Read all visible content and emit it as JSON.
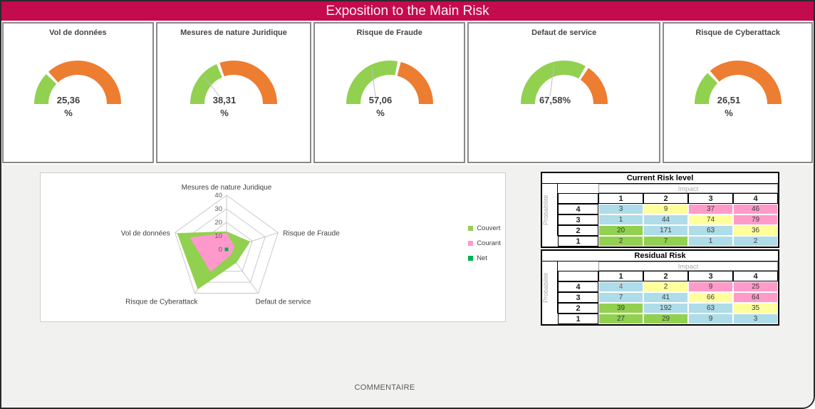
{
  "title_bar": {
    "title": "Exposition to the Main Risk",
    "bg_color": "#C30B4E"
  },
  "footer": {
    "comment_label": "COMMENTAIRE"
  },
  "palette": {
    "blue": "#AEDCE8",
    "yellow": "#FFFF9C",
    "pink": "#FF9BC9",
    "green": "#92D050"
  },
  "chart_data": [
    {
      "type": "gauge",
      "title": "Vol de données",
      "value_pct": 25.36,
      "label_lines": [
        "25,36",
        "%"
      ],
      "leader_line": false,
      "filled_color": "#92D050",
      "remainder_color": "#ED7D31"
    },
    {
      "type": "gauge",
      "title": "Mesures de nature Juridique",
      "value_pct": 38.31,
      "label_lines": [
        "38,31",
        "%"
      ],
      "leader_line": true,
      "filled_color": "#92D050",
      "remainder_color": "#ED7D31"
    },
    {
      "type": "gauge",
      "title": "Risque de Fraude",
      "value_pct": 57.06,
      "label_lines": [
        "57,06",
        "%"
      ],
      "leader_line": true,
      "filled_color": "#92D050",
      "remainder_color": "#ED7D31"
    },
    {
      "type": "gauge",
      "title": "Defaut de service",
      "value_pct": 67.58,
      "label_lines": [
        "67,58%"
      ],
      "leader_line": true,
      "filled_color": "#92D050",
      "remainder_color": "#ED7D31"
    },
    {
      "type": "gauge",
      "title": "Risque de Cyberattack",
      "value_pct": 26.51,
      "label_lines": [
        "26,51",
        "%"
      ],
      "leader_line": false,
      "filled_color": "#92D050",
      "remainder_color": "#ED7D31"
    },
    {
      "type": "radar",
      "categories": [
        "Mesures de nature Juridique",
        "Risque de Fraude",
        "Defaut de service",
        "Risque de Cyberattack",
        "Vol de données"
      ],
      "series": [
        {
          "name": "Couvert",
          "color": "#92D050",
          "values": [
            13,
            18,
            12,
            36,
            38
          ]
        },
        {
          "name": "Courant",
          "color": "#FF99CC",
          "values": [
            12,
            6,
            5,
            20,
            28
          ]
        },
        {
          "name": "Net",
          "color": "#00B050",
          "values": [
            0,
            0,
            0,
            0,
            0
          ]
        }
      ],
      "rmax": 40,
      "rticks": [
        0,
        10,
        20,
        30,
        40
      ],
      "grid": true,
      "legend_position": "right"
    },
    {
      "type": "heatmap",
      "title": "Current Risk level",
      "xlabel": "Impact",
      "ylabel": "Probabilité",
      "columns": [
        "1",
        "2",
        "3",
        "4"
      ],
      "rows": [
        "4",
        "3",
        "2",
        "1"
      ],
      "values": [
        [
          3,
          9,
          37,
          46
        ],
        [
          1,
          44,
          74,
          79
        ],
        [
          20,
          171,
          63,
          36
        ],
        [
          2,
          7,
          1,
          2
        ]
      ],
      "cell_colors": [
        [
          "blue",
          "yellow",
          "pink",
          "pink"
        ],
        [
          "blue",
          "blue",
          "yellow",
          "pink"
        ],
        [
          "green",
          "blue",
          "blue",
          "yellow"
        ],
        [
          "green",
          "green",
          "blue",
          "blue"
        ]
      ],
      "special_text": []
    },
    {
      "type": "heatmap",
      "title": "Residual Risk",
      "xlabel": "Impact",
      "ylabel": "Probabilité",
      "columns": [
        "1",
        "2",
        "3",
        "4"
      ],
      "rows": [
        "4",
        "3",
        "2",
        "1"
      ],
      "values": [
        [
          4,
          2,
          9,
          25
        ],
        [
          7,
          41,
          66,
          64
        ],
        [
          39,
          192,
          63,
          35
        ],
        [
          27,
          29,
          9,
          3
        ]
      ],
      "cell_colors": [
        [
          "blue",
          "yellow",
          "pink",
          "pink"
        ],
        [
          "blue",
          "blue",
          "yellow",
          "pink"
        ],
        [
          "green",
          "blue",
          "blue",
          "yellow"
        ],
        [
          "green",
          "green",
          "blue",
          "blue"
        ]
      ],
      "special_text": [
        {
          "row": 0,
          "col": 0,
          "color": "#FF2A2A"
        }
      ]
    }
  ]
}
